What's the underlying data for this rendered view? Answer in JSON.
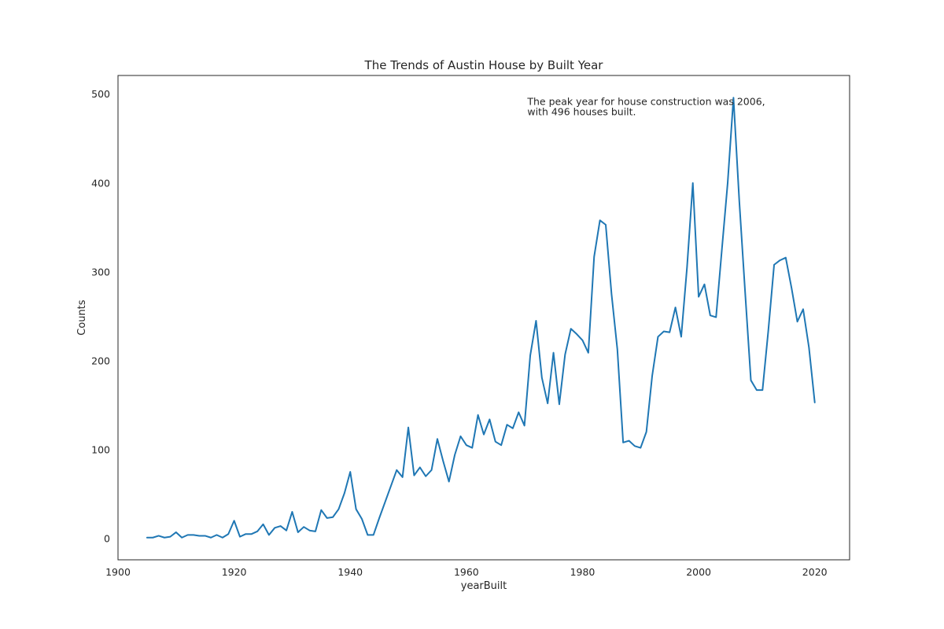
{
  "chart_data": {
    "type": "line",
    "title": "The Trends of Austin House by Built Year",
    "xlabel": "yearBuilt",
    "ylabel": "Counts",
    "xlim": [
      1900,
      2026
    ],
    "ylim": [
      -24,
      521
    ],
    "xticks": [
      1900,
      1920,
      1940,
      1960,
      1980,
      2000,
      2020
    ],
    "yticks": [
      0,
      100,
      200,
      300,
      400,
      500
    ],
    "grid": false,
    "color": "#1f77b4",
    "annotation": {
      "line1": "The peak year for house construction was 2006,",
      "line2": "with 496 houses built.",
      "x": 1970.5,
      "y": 488
    },
    "series": [
      {
        "x": [
          1905,
          1906,
          1907,
          1908,
          1909,
          1910,
          1911,
          1912,
          1913,
          1914,
          1915,
          1916,
          1917,
          1918,
          1919,
          1920,
          1921,
          1922,
          1923,
          1924,
          1925,
          1926,
          1927,
          1928,
          1929,
          1930,
          1931,
          1932,
          1933,
          1934,
          1935,
          1936,
          1937,
          1938,
          1939,
          1940,
          1941,
          1942,
          1943,
          1944,
          1945,
          1946,
          1947,
          1948,
          1949,
          1950,
          1951,
          1952,
          1953,
          1954,
          1955,
          1956,
          1957,
          1958,
          1959,
          1960,
          1961,
          1962,
          1963,
          1964,
          1965,
          1966,
          1967,
          1968,
          1969,
          1970,
          1971,
          1972,
          1973,
          1974,
          1975,
          1976,
          1977,
          1978,
          1979,
          1980,
          1981,
          1982,
          1983,
          1984,
          1985,
          1986,
          1987,
          1988,
          1989,
          1990,
          1991,
          1992,
          1993,
          1994,
          1995,
          1996,
          1997,
          1998,
          1999,
          2000,
          2001,
          2002,
          2003,
          2004,
          2005,
          2006,
          2007,
          2008,
          2009,
          2010,
          2011,
          2012,
          2013,
          2014,
          2015,
          2016,
          2017,
          2018,
          2019,
          2020
        ],
        "values": [
          1,
          1,
          3,
          1,
          2,
          7,
          1,
          4,
          4,
          3,
          3,
          1,
          4,
          1,
          5,
          20,
          2,
          5,
          5,
          8,
          16,
          4,
          12,
          14,
          9,
          30,
          7,
          13,
          9,
          8,
          32,
          23,
          24,
          33,
          51,
          75,
          33,
          22,
          4,
          4,
          23,
          41,
          59,
          77,
          69,
          125,
          71,
          80,
          70,
          77,
          112,
          87,
          64,
          94,
          115,
          105,
          102,
          139,
          117,
          134,
          109,
          105,
          128,
          124,
          142,
          127,
          206,
          245,
          181,
          152,
          209,
          151,
          207,
          236,
          230,
          223,
          209,
          317,
          358,
          353,
          275,
          213,
          108,
          110,
          104,
          102,
          120,
          183,
          227,
          233,
          232,
          260,
          227,
          305,
          400,
          272,
          286,
          251,
          249,
          325,
          400,
          496,
          380,
          278,
          178,
          167,
          167,
          234,
          308,
          313,
          316,
          282,
          244,
          258,
          215,
          153
        ]
      }
    ]
  }
}
